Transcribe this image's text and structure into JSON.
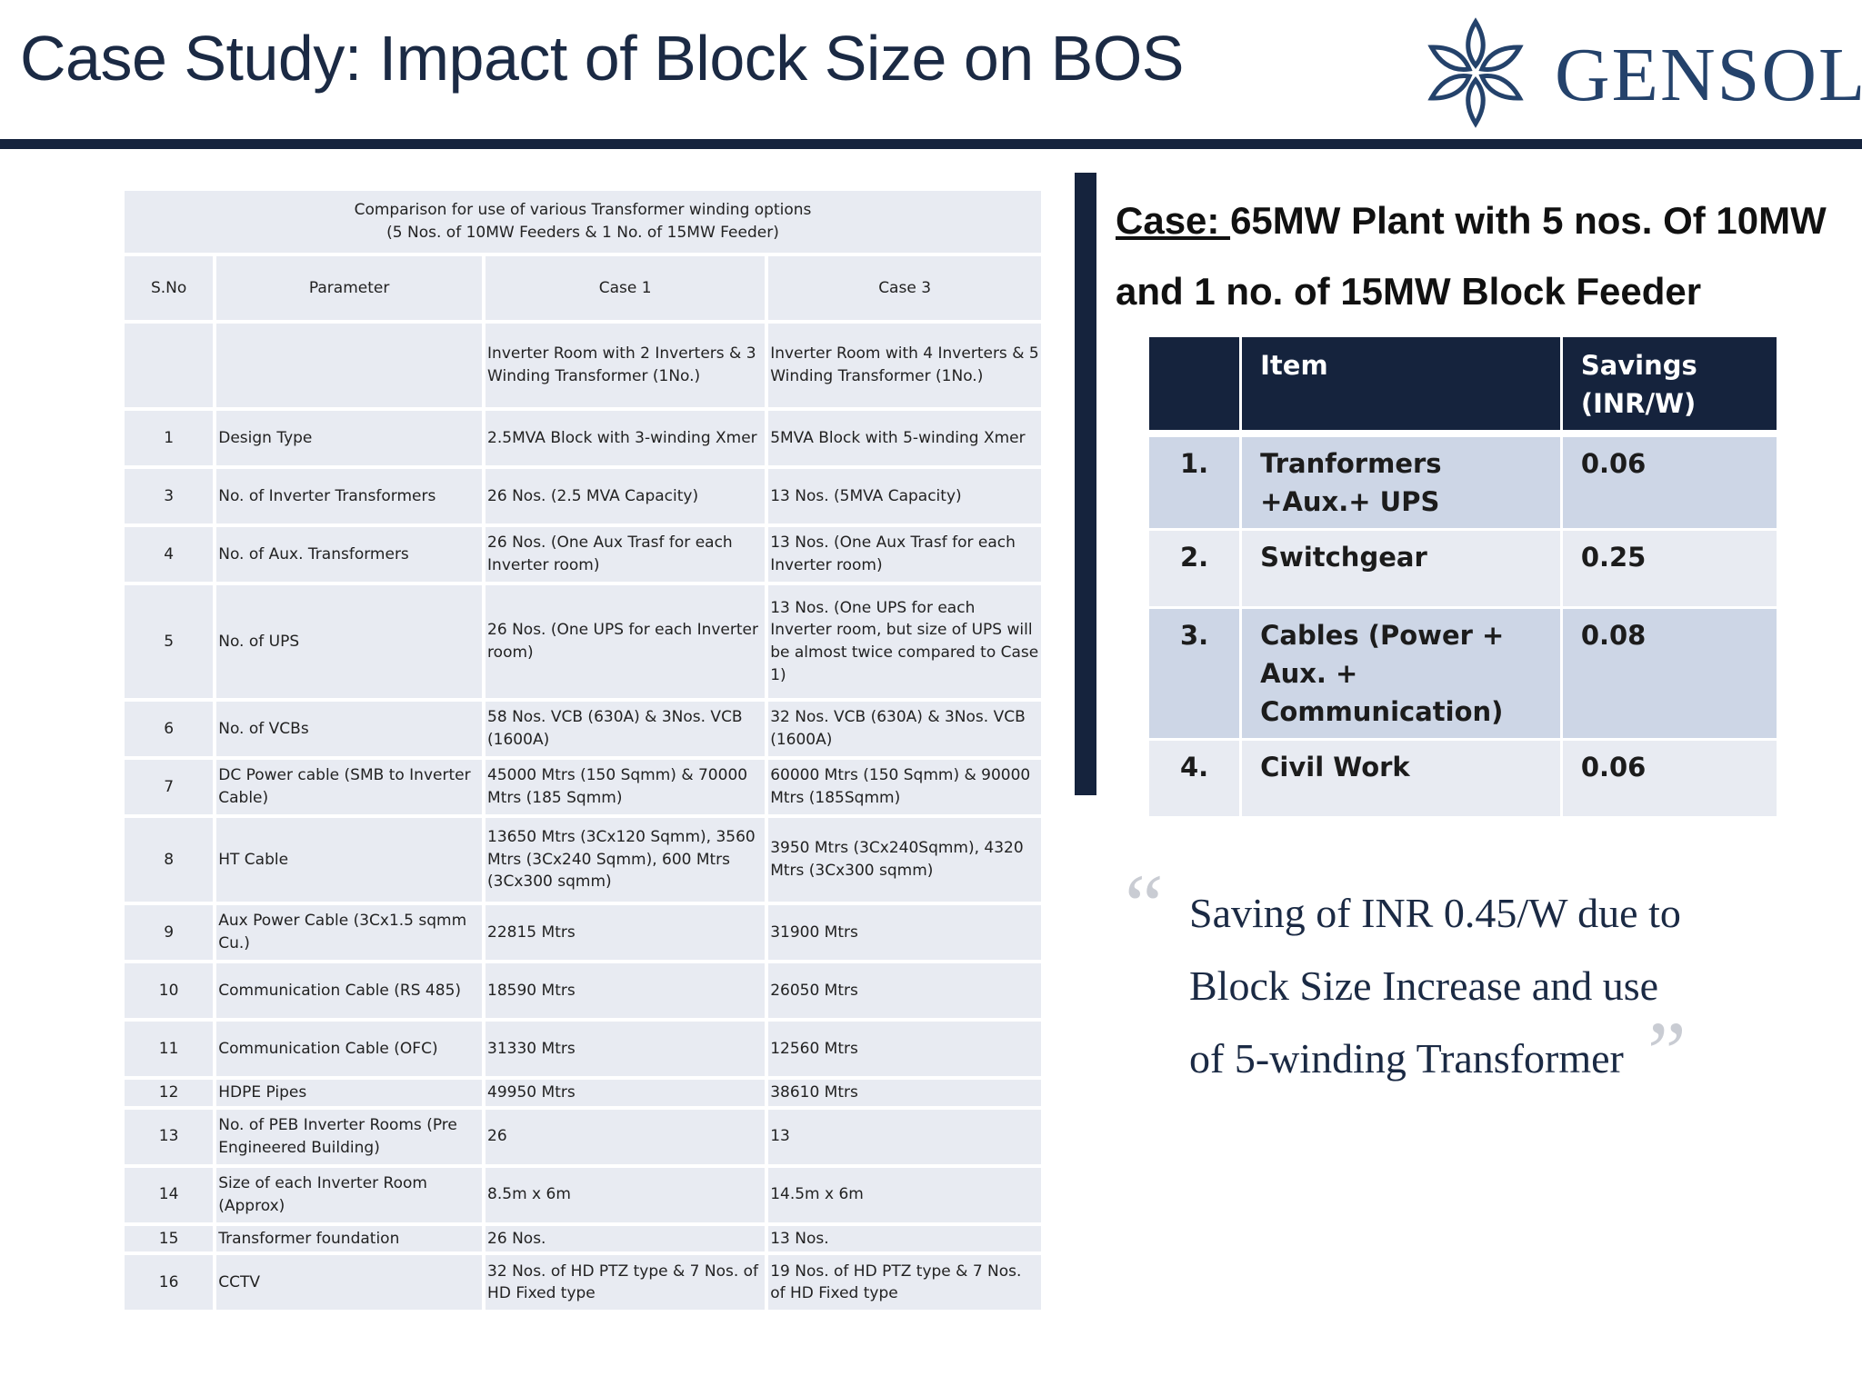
{
  "header": {
    "title": "Case Study: Impact of Block Size on BOS",
    "logo_text": "GENSOL",
    "logo_icon": "gensol-star-logo-icon"
  },
  "comparison": {
    "title_line1": "Comparison for use of various Transformer winding options",
    "title_line2": "(5 Nos. of 10MW Feeders & 1 No. of 15MW Feeder)",
    "columns": [
      "S.No",
      "Parameter",
      "Case 1",
      "Case 3"
    ],
    "rows": [
      {
        "sno": "",
        "param": "",
        "case1": "Inverter  Room with 2 Inverters & 3 Winding Transformer (1No.)",
        "case3": "Inverter  Room with 4 Inverters & 5 Winding Transformer (1No.)"
      },
      {
        "sno": "1",
        "param": "Design Type",
        "case1": "2.5MVA Block with 3-winding Xmer",
        "case3": "5MVA Block with 5-winding Xmer"
      },
      {
        "sno": "3",
        "param": "No. of Inverter Transformers",
        "case1": "26 Nos. (2.5 MVA Capacity)",
        "case3": "13 Nos. (5MVA Capacity)"
      },
      {
        "sno": "4",
        "param": "No. of Aux. Transformers",
        "case1": "26 Nos. (One Aux Trasf for each Inverter  room)",
        "case3": "13 Nos. (One Aux Trasf for each Inverter  room)"
      },
      {
        "sno": "5",
        "param": "No. of UPS",
        "case1": "26 Nos. (One UPS for each Inverter room)",
        "case3": "13 Nos. (One UPS for each Inverter room, but size of UPS will be almost twice compared to Case 1)"
      },
      {
        "sno": "6",
        "param": "No. of VCBs",
        "case1": "58 Nos. VCB (630A) & 3Nos. VCB (1600A)",
        "case3": "32 Nos. VCB (630A) & 3Nos. VCB (1600A)"
      },
      {
        "sno": "7",
        "param": "DC Power cable (SMB to Inverter Cable)",
        "case1": "45000 Mtrs (150 Sqmm) & 70000 Mtrs (185 Sqmm)",
        "case3": "60000 Mtrs (150 Sqmm) & 90000 Mtrs (185Sqmm)"
      },
      {
        "sno": "8",
        "param": "HT Cable",
        "case1": "13650 Mtrs (3Cx120 Sqmm), 3560 Mtrs (3Cx240 Sqmm), 600 Mtrs (3Cx300 sqmm)",
        "case3": "3950 Mtrs (3Cx240Sqmm), 4320 Mtrs (3Cx300 sqmm)"
      },
      {
        "sno": "9",
        "param": "Aux Power Cable (3Cx1.5 sqmm Cu.)",
        "case1": "22815 Mtrs",
        "case3": "31900 Mtrs"
      },
      {
        "sno": "10",
        "param": "Communication Cable (RS 485)",
        "case1": "18590 Mtrs",
        "case3": "26050 Mtrs"
      },
      {
        "sno": "11",
        "param": "Communication Cable (OFC)",
        "case1": "31330 Mtrs",
        "case3": "12560 Mtrs"
      },
      {
        "sno": "12",
        "param": "HDPE Pipes",
        "case1": "49950 Mtrs",
        "case3": "38610 Mtrs"
      },
      {
        "sno": "13",
        "param": "No. of PEB Inverter Rooms (Pre Engineered  Building)",
        "case1": "26",
        "case3": "13"
      },
      {
        "sno": "14",
        "param": "Size of each Inverter Room (Approx)",
        "case1": "8.5m x 6m",
        "case3": "14.5m x 6m"
      },
      {
        "sno": "15",
        "param": "Transformer foundation",
        "case1": "26 Nos.",
        "case3": "13 Nos."
      },
      {
        "sno": "16",
        "param": "CCTV",
        "case1": "32 Nos. of HD PTZ type & 7 Nos. of HD Fixed type",
        "case3": "19 Nos. of HD PTZ type & 7 Nos. of HD Fixed type"
      }
    ]
  },
  "case": {
    "label": "Case: ",
    "text": "65MW Plant with 5 nos.  Of 10MW and 1 no. of 15MW Block Feeder"
  },
  "savings": {
    "headers": [
      "",
      "Item",
      "Savings (INR/W)"
    ],
    "rows": [
      {
        "num": "1.",
        "item": "Tranformers +Aux.+ UPS",
        "value": "0.06"
      },
      {
        "num": "2.",
        "item": "Switchgear",
        "value": "0.25"
      },
      {
        "num": "3.",
        "item": "Cables (Power + Aux. + Communication)",
        "value": "0.08"
      },
      {
        "num": "4.",
        "item": "Civil Work",
        "value": "0.06"
      }
    ]
  },
  "quote": {
    "open_mark": "“",
    "text": "Saving of INR 0.45/W due to Block Size Increase and use of 5-winding Transformer",
    "close_mark": "”"
  }
}
